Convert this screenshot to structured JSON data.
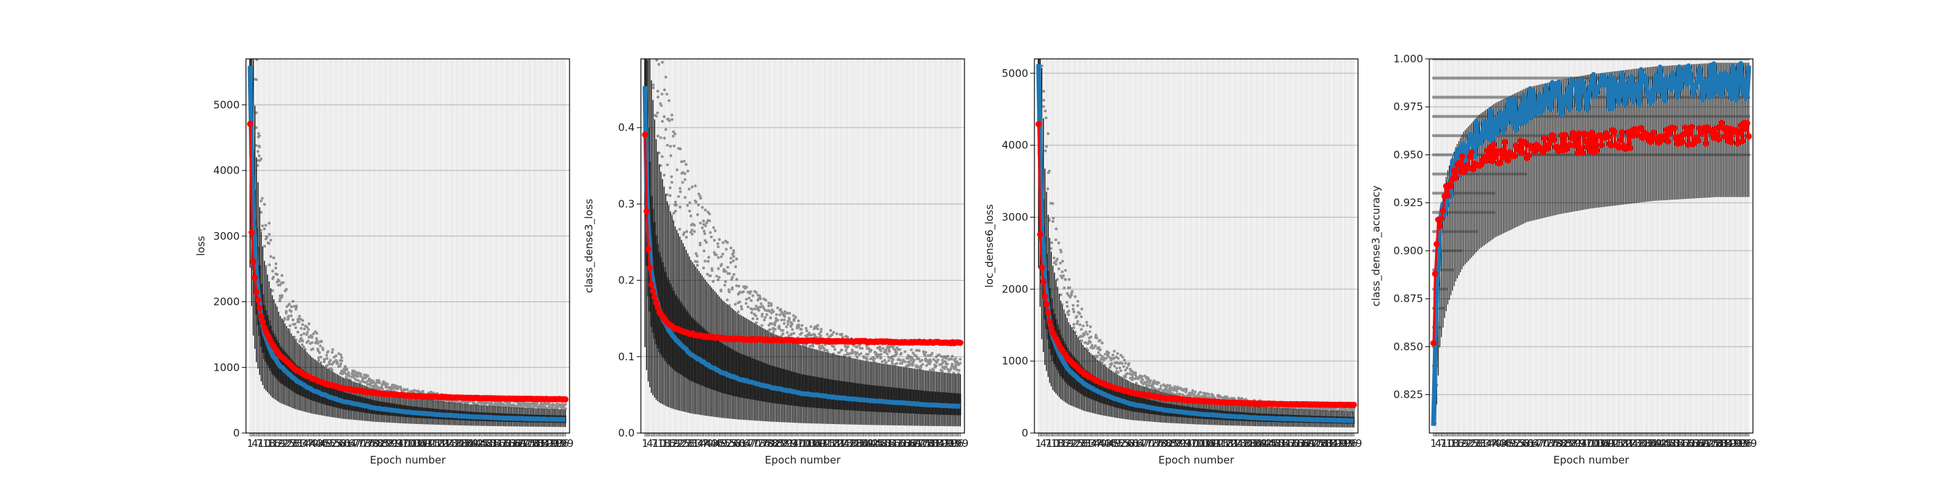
{
  "colors": {
    "train": "#1f77b4",
    "validation": "#ff0000",
    "box": "#000000",
    "grid": "#b0b0b0"
  },
  "chart_data": [
    {
      "type": "line",
      "xlabel": "Epoch number",
      "ylabel": "loss",
      "x_range": [
        1,
        200
      ],
      "ylim": [
        0,
        5700
      ],
      "yticks": [
        0,
        1000,
        2000,
        3000,
        4000,
        5000
      ],
      "grid": true,
      "series": [
        {
          "role": "train",
          "color": "#1f77b4",
          "marker": "line",
          "x": [
            1,
            2,
            3,
            5,
            8,
            10,
            15,
            20,
            30,
            40,
            50,
            60,
            80,
            100,
            120,
            140,
            160,
            180,
            200
          ],
          "y": [
            5600,
            4300,
            3300,
            2400,
            1750,
            1500,
            1200,
            1020,
            800,
            660,
            560,
            480,
            380,
            320,
            280,
            250,
            230,
            215,
            205
          ]
        },
        {
          "role": "validation",
          "color": "#ff0000",
          "marker": "circle",
          "x": [
            1,
            2,
            3,
            5,
            8,
            10,
            15,
            20,
            30,
            40,
            50,
            60,
            80,
            100,
            120,
            140,
            160,
            180,
            200
          ],
          "y": [
            4700,
            3050,
            2600,
            2150,
            1780,
            1600,
            1350,
            1180,
            960,
            830,
            740,
            680,
            610,
            570,
            550,
            535,
            525,
            520,
            515
          ]
        }
      ],
      "box_spread": {
        "upper_ratio": 1.75,
        "lower_ratio": 0.45
      }
    },
    {
      "type": "line",
      "xlabel": "Epoch number",
      "ylabel": "class_dense3_loss",
      "x_range": [
        1,
        200
      ],
      "ylim": [
        0,
        0.49
      ],
      "yticks": [
        0.0,
        0.1,
        0.2,
        0.3,
        0.4
      ],
      "grid": true,
      "series": [
        {
          "role": "train",
          "color": "#1f77b4",
          "marker": "line",
          "x": [
            1,
            2,
            3,
            5,
            8,
            10,
            15,
            20,
            30,
            40,
            50,
            60,
            80,
            100,
            120,
            140,
            160,
            180,
            200
          ],
          "y": [
            0.45,
            0.33,
            0.27,
            0.21,
            0.175,
            0.16,
            0.138,
            0.123,
            0.103,
            0.09,
            0.079,
            0.071,
            0.06,
            0.052,
            0.047,
            0.043,
            0.04,
            0.037,
            0.035
          ]
        },
        {
          "role": "validation",
          "color": "#ff0000",
          "marker": "circle",
          "x": [
            1,
            2,
            3,
            5,
            8,
            10,
            15,
            20,
            30,
            40,
            50,
            60,
            80,
            100,
            120,
            140,
            160,
            180,
            200
          ],
          "y": [
            0.39,
            0.29,
            0.24,
            0.195,
            0.17,
            0.158,
            0.145,
            0.137,
            0.13,
            0.126,
            0.124,
            0.123,
            0.122,
            0.121,
            0.12,
            0.12,
            0.119,
            0.119,
            0.118
          ]
        }
      ],
      "box_spread": {
        "upper_ratio": 2.2,
        "lower_ratio": 0.25
      }
    },
    {
      "type": "line",
      "xlabel": "Epoch number",
      "ylabel": "loc_dense6_loss",
      "x_range": [
        1,
        200
      ],
      "ylim": [
        0,
        5200
      ],
      "yticks": [
        0,
        1000,
        2000,
        3000,
        4000,
        5000
      ],
      "grid": true,
      "series": [
        {
          "role": "train",
          "color": "#1f77b4",
          "marker": "line",
          "x": [
            1,
            2,
            3,
            5,
            8,
            10,
            15,
            20,
            30,
            40,
            50,
            60,
            80,
            100,
            120,
            140,
            160,
            180,
            200
          ],
          "y": [
            5100,
            3900,
            2900,
            2100,
            1550,
            1330,
            1050,
            880,
            680,
            560,
            470,
            400,
            320,
            270,
            235,
            210,
            195,
            182,
            172
          ]
        },
        {
          "role": "validation",
          "color": "#ff0000",
          "marker": "circle",
          "x": [
            1,
            2,
            3,
            5,
            8,
            10,
            15,
            20,
            30,
            40,
            50,
            60,
            80,
            100,
            120,
            140,
            160,
            180,
            200
          ],
          "y": [
            4300,
            2750,
            2300,
            1900,
            1550,
            1400,
            1180,
            1020,
            820,
            700,
            620,
            560,
            490,
            450,
            425,
            410,
            400,
            395,
            390
          ]
        }
      ],
      "box_spread": {
        "upper_ratio": 1.75,
        "lower_ratio": 0.45
      }
    },
    {
      "type": "line",
      "xlabel": "Epoch number",
      "ylabel": "class_dense3_accuracy",
      "x_range": [
        1,
        200
      ],
      "ylim": [
        0.805,
        1.0
      ],
      "yticks": [
        0.825,
        0.85,
        0.875,
        0.9,
        0.925,
        0.95,
        0.975,
        1.0
      ],
      "grid": true,
      "series": [
        {
          "role": "train",
          "color": "#1f77b4",
          "marker": "line",
          "x": [
            1,
            2,
            3,
            5,
            8,
            10,
            15,
            20,
            30,
            40,
            50,
            60,
            80,
            100,
            120,
            140,
            160,
            180,
            200
          ],
          "y": [
            0.81,
            0.85,
            0.88,
            0.91,
            0.925,
            0.932,
            0.944,
            0.952,
            0.961,
            0.967,
            0.971,
            0.975,
            0.979,
            0.982,
            0.984,
            0.986,
            0.987,
            0.988,
            0.988
          ]
        },
        {
          "role": "validation",
          "color": "#ff0000",
          "marker": "circle",
          "x": [
            1,
            2,
            3,
            5,
            8,
            10,
            15,
            20,
            30,
            40,
            50,
            60,
            80,
            100,
            120,
            140,
            160,
            180,
            200
          ],
          "y": [
            0.85,
            0.89,
            0.905,
            0.917,
            0.928,
            0.933,
            0.94,
            0.945,
            0.949,
            0.951,
            0.952,
            0.953,
            0.955,
            0.957,
            0.958,
            0.959,
            0.96,
            0.961,
            0.961
          ]
        }
      ],
      "discrete_levels": [
        0.81,
        0.82,
        0.83,
        0.84,
        0.85,
        0.86,
        0.87,
        0.88,
        0.89,
        0.9,
        0.91,
        0.92,
        0.93,
        0.94,
        0.95,
        0.96,
        0.97,
        0.98,
        0.99,
        1.0
      ]
    }
  ]
}
